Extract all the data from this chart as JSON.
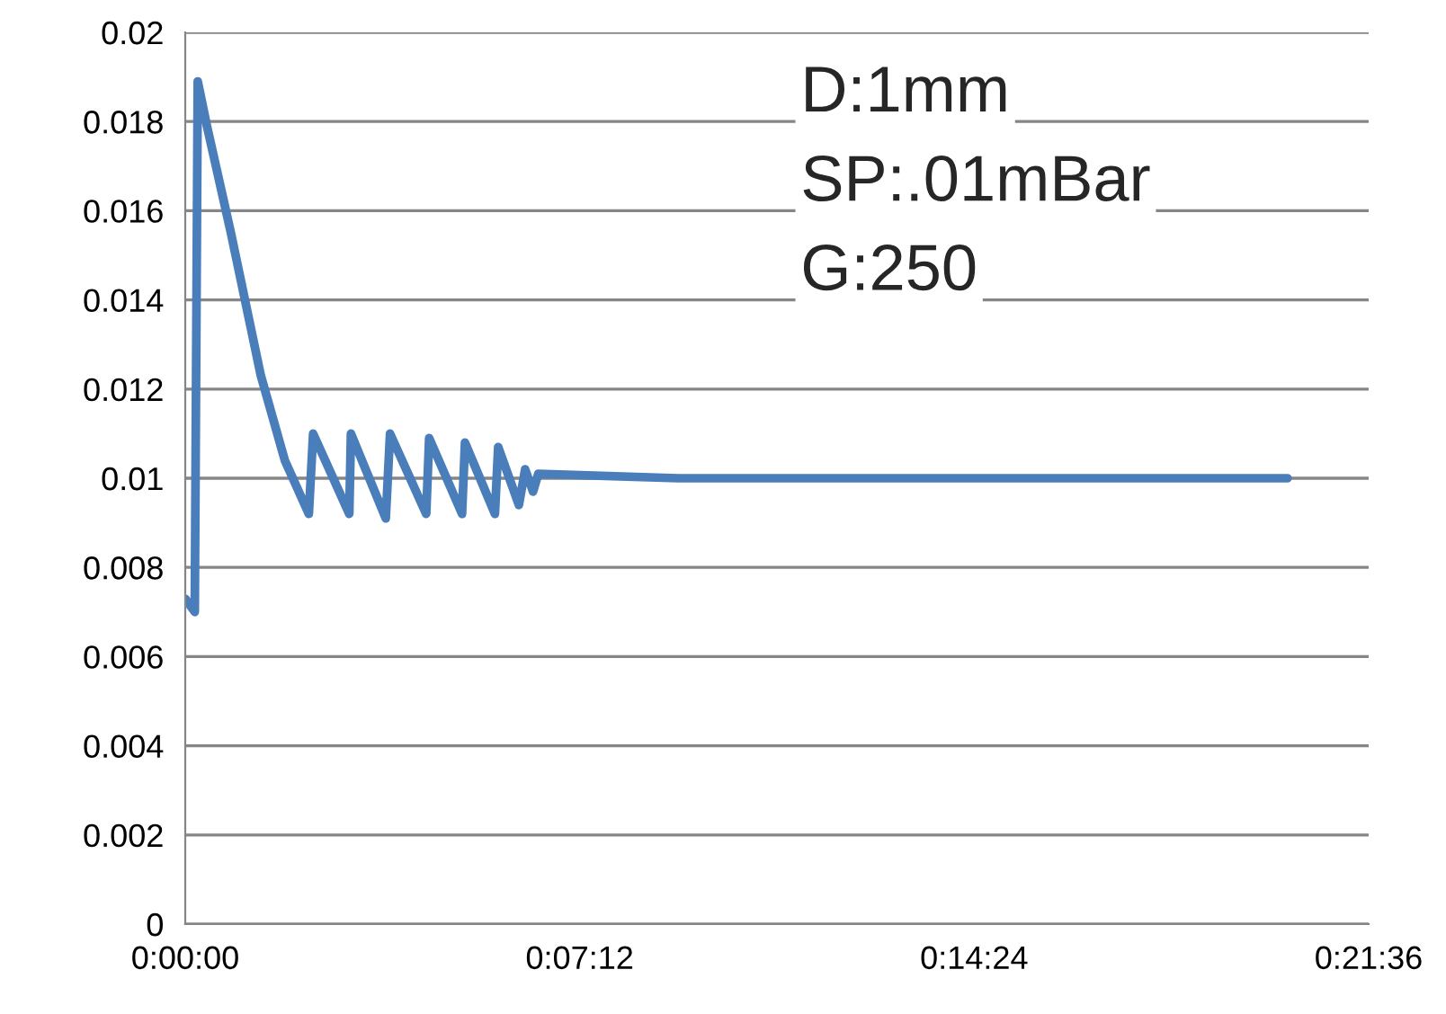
{
  "chart_data": {
    "type": "line",
    "x": [
      0,
      0.0029,
      0.0038,
      0.0066,
      0.0139,
      0.023,
      0.0303,
      0.0376,
      0.0389,
      0.0499,
      0.0504,
      0.061,
      0.0623,
      0.0733,
      0.0742,
      0.0842,
      0.0851,
      0.0942,
      0.0952,
      0.1015,
      0.1034,
      0.1058,
      0.1074,
      0.15,
      0.2,
      0.25,
      0.3,
      0.3353
    ],
    "series": [
      {
        "color": "#4a7ebb",
        "values": [
          0.0073,
          0.007,
          0.0189,
          0.0179,
          0.0155,
          0.0123,
          0.0104,
          0.0092,
          0.011,
          0.0092,
          0.011,
          0.0091,
          0.011,
          0.0092,
          0.0109,
          0.0092,
          0.0108,
          0.0092,
          0.0107,
          0.0094,
          0.0102,
          0.0097,
          0.0101,
          0.01,
          0.01,
          0.01,
          0.01,
          0.01
        ]
      }
    ],
    "xlim": [
      0,
      0.36
    ],
    "xticks": [
      {
        "value": 0,
        "label": "0:00:00"
      },
      {
        "value": 0.12,
        "label": "0:07:12"
      },
      {
        "value": 0.24,
        "label": "0:14:24"
      },
      {
        "value": 0.36,
        "label": "0:21:36"
      }
    ],
    "ylim": [
      0,
      0.02
    ],
    "yticks": [
      0,
      0.002,
      0.004,
      0.006,
      0.008,
      0.01,
      0.012,
      0.014,
      0.016,
      0.018,
      0.02
    ],
    "grid": "y",
    "annotations": [
      "D:1mm",
      "SP:.01mBar",
      "G:250"
    ]
  }
}
